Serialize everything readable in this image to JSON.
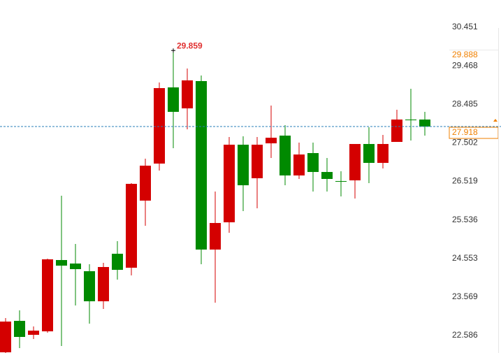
{
  "chart_data": {
    "type": "candlestick",
    "up_color": "#d40000",
    "down_color": "#008a00",
    "open": [
      22.158,
      22.96,
      22.604,
      22.693,
      24.512,
      24.423,
      24.227,
      23.46,
      24.672,
      24.316,
      26.028,
      26.973,
      28.917,
      28.382,
      29.078,
      24.779,
      25.475,
      27.455,
      26.599,
      27.49,
      27.687,
      26.67,
      27.241,
      26.759,
      26.527,
      26.545,
      27.473,
      26.991,
      27.526,
      28.097,
      28.097
    ],
    "high": [
      23.032,
      23.228,
      22.818,
      24.548,
      26.153,
      24.922,
      24.405,
      24.441,
      24.994,
      26.474,
      27.098,
      29.042,
      29.859,
      29.399,
      29.22,
      26.26,
      27.651,
      27.669,
      27.651,
      28.453,
      27.954,
      27.508,
      27.508,
      27.116,
      26.777,
      27.473,
      27.901,
      27.704,
      28.346,
      28.882,
      28.293
    ],
    "low": [
      22.14,
      22.265,
      22.497,
      22.657,
      22.318,
      23.353,
      22.889,
      23.263,
      24.013,
      24.12,
      25.386,
      26.795,
      27.366,
      27.847,
      24.405,
      23.424,
      25.208,
      25.76,
      25.832,
      27.116,
      26.42,
      26.581,
      26.26,
      26.26,
      26.135,
      26.081,
      26.474,
      26.848,
      27.526,
      27.562,
      27.687
    ],
    "close": [
      22.942,
      22.55,
      22.711,
      24.53,
      24.369,
      24.28,
      23.46,
      24.334,
      24.262,
      26.456,
      26.92,
      28.899,
      28.293,
      29.096,
      24.779,
      25.457,
      27.455,
      26.42,
      27.455,
      27.633,
      26.67,
      27.205,
      26.759,
      26.581,
      26.509,
      27.473,
      26.991,
      27.473,
      28.097,
      28.079,
      27.918
    ],
    "ylim": [
      22.14,
      31.147
    ],
    "yticks": [
      22.586,
      23.569,
      24.553,
      25.536,
      26.519,
      27.502,
      28.485,
      29.468,
      30.451
    ],
    "reference_price": 29.888,
    "reference_color": "#f08000",
    "current_line_color": "#2a7fb8",
    "max_label_color": "#e03030"
  }
}
